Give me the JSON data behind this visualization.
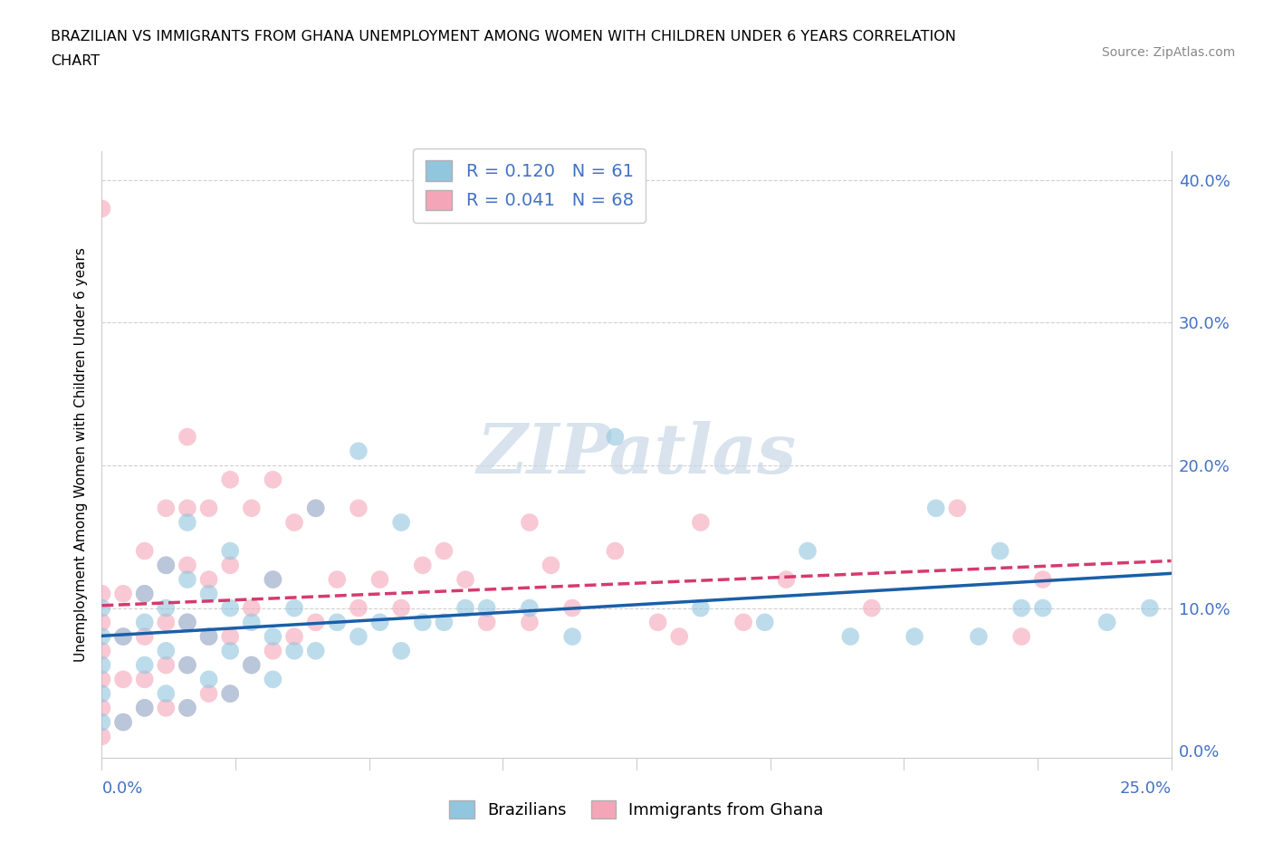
{
  "title_line1": "BRAZILIAN VS IMMIGRANTS FROM GHANA UNEMPLOYMENT AMONG WOMEN WITH CHILDREN UNDER 6 YEARS CORRELATION",
  "title_line2": "CHART",
  "source": "Source: ZipAtlas.com",
  "xlabel_bottom_left": "0.0%",
  "xlabel_bottom_right": "25.0%",
  "ylabel": "Unemployment Among Women with Children Under 6 years",
  "yticks": [
    "0.0%",
    "10.0%",
    "20.0%",
    "30.0%",
    "40.0%"
  ],
  "ytick_vals": [
    0.0,
    0.1,
    0.2,
    0.3,
    0.4
  ],
  "xrange": [
    0.0,
    0.25
  ],
  "yrange": [
    -0.005,
    0.42
  ],
  "watermark": "ZIPatlas",
  "legend1_label": "R = 0.120   N = 61",
  "legend2_label": "R = 0.041   N = 68",
  "legend_bottom_label1": "Brazilians",
  "legend_bottom_label2": "Immigrants from Ghana",
  "color_blue": "#92c5de",
  "color_pink": "#f4a6b8",
  "trendline_blue": "#1a5fa8",
  "trendline_pink": "#d63a6e",
  "blue_points_x": [
    0.0,
    0.0,
    0.0,
    0.0,
    0.0,
    0.005,
    0.005,
    0.01,
    0.01,
    0.01,
    0.01,
    0.015,
    0.015,
    0.015,
    0.015,
    0.02,
    0.02,
    0.02,
    0.02,
    0.02,
    0.025,
    0.025,
    0.025,
    0.03,
    0.03,
    0.03,
    0.03,
    0.035,
    0.035,
    0.04,
    0.04,
    0.04,
    0.045,
    0.045,
    0.05,
    0.05,
    0.055,
    0.06,
    0.06,
    0.065,
    0.07,
    0.07,
    0.075,
    0.08,
    0.085,
    0.09,
    0.1,
    0.11,
    0.12,
    0.14,
    0.155,
    0.165,
    0.175,
    0.19,
    0.195,
    0.205,
    0.21,
    0.215,
    0.22,
    0.235,
    0.245
  ],
  "blue_points_y": [
    0.02,
    0.04,
    0.06,
    0.08,
    0.1,
    0.02,
    0.08,
    0.03,
    0.06,
    0.09,
    0.11,
    0.04,
    0.07,
    0.1,
    0.13,
    0.03,
    0.06,
    0.09,
    0.12,
    0.16,
    0.05,
    0.08,
    0.11,
    0.04,
    0.07,
    0.1,
    0.14,
    0.06,
    0.09,
    0.05,
    0.08,
    0.12,
    0.07,
    0.1,
    0.07,
    0.17,
    0.09,
    0.08,
    0.21,
    0.09,
    0.07,
    0.16,
    0.09,
    0.09,
    0.1,
    0.1,
    0.1,
    0.08,
    0.22,
    0.1,
    0.09,
    0.14,
    0.08,
    0.08,
    0.17,
    0.08,
    0.14,
    0.1,
    0.1,
    0.09,
    0.1
  ],
  "pink_points_x": [
    0.0,
    0.0,
    0.0,
    0.0,
    0.0,
    0.0,
    0.0,
    0.005,
    0.005,
    0.005,
    0.005,
    0.01,
    0.01,
    0.01,
    0.01,
    0.01,
    0.015,
    0.015,
    0.015,
    0.015,
    0.015,
    0.02,
    0.02,
    0.02,
    0.02,
    0.02,
    0.02,
    0.025,
    0.025,
    0.025,
    0.025,
    0.03,
    0.03,
    0.03,
    0.03,
    0.035,
    0.035,
    0.035,
    0.04,
    0.04,
    0.04,
    0.045,
    0.045,
    0.05,
    0.05,
    0.055,
    0.06,
    0.06,
    0.065,
    0.07,
    0.075,
    0.08,
    0.085,
    0.09,
    0.1,
    0.1,
    0.105,
    0.11,
    0.12,
    0.13,
    0.135,
    0.14,
    0.15,
    0.16,
    0.18,
    0.2,
    0.215,
    0.22
  ],
  "pink_points_y": [
    0.01,
    0.03,
    0.05,
    0.07,
    0.09,
    0.11,
    0.38,
    0.02,
    0.05,
    0.08,
    0.11,
    0.03,
    0.05,
    0.08,
    0.11,
    0.14,
    0.03,
    0.06,
    0.09,
    0.13,
    0.17,
    0.03,
    0.06,
    0.09,
    0.13,
    0.17,
    0.22,
    0.04,
    0.08,
    0.12,
    0.17,
    0.04,
    0.08,
    0.13,
    0.19,
    0.06,
    0.1,
    0.17,
    0.07,
    0.12,
    0.19,
    0.08,
    0.16,
    0.09,
    0.17,
    0.12,
    0.1,
    0.17,
    0.12,
    0.1,
    0.13,
    0.14,
    0.12,
    0.09,
    0.09,
    0.16,
    0.13,
    0.1,
    0.14,
    0.09,
    0.08,
    0.16,
    0.09,
    0.12,
    0.1,
    0.17,
    0.08,
    0.12
  ]
}
